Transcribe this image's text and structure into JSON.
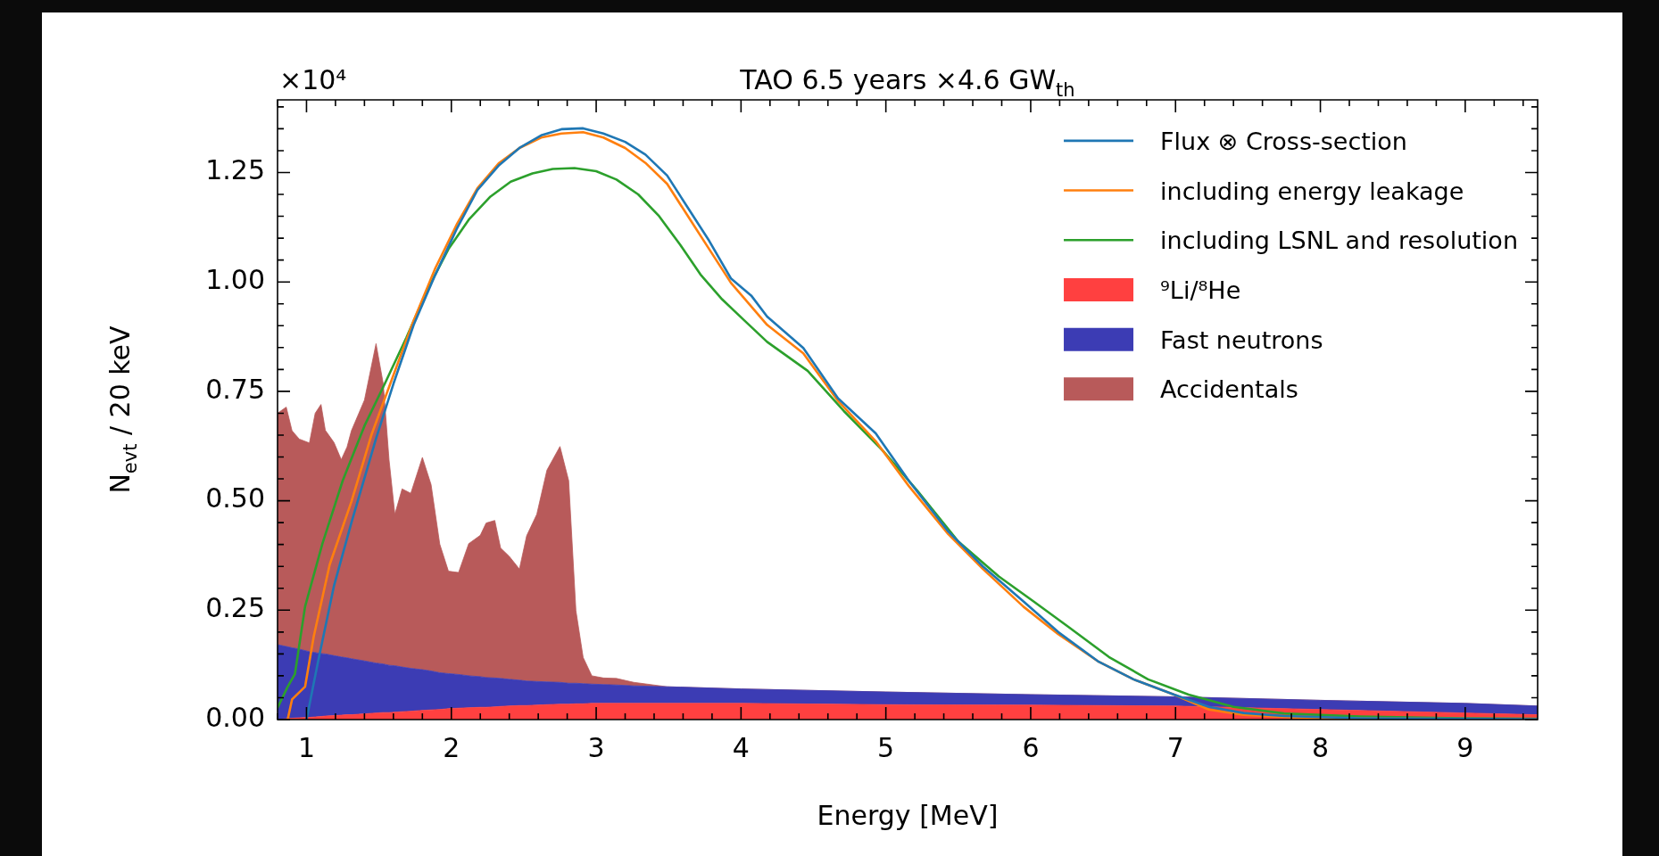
{
  "chart_data": {
    "type": "line",
    "title": "TAO 6.5 years ×4.6 GW$_{th}$",
    "xlabel": "Energy [MeV]",
    "ylabel": "N$_{evt}$ / 20 keV",
    "annotations": [
      "×10⁴"
    ],
    "xlim": [
      0.8,
      9.5
    ],
    "xticks": [
      {
        "value": 0.8,
        "label": null
      },
      1,
      {
        "value": 1.2,
        "label": null
      },
      {
        "value": 1.4,
        "label": null
      },
      {
        "value": 1.6,
        "label": null
      },
      {
        "value": 1.8,
        "label": null
      },
      2,
      {
        "value": 2.2,
        "label": null
      },
      {
        "value": 2.4,
        "label": null
      },
      {
        "value": 2.6,
        "label": null
      },
      {
        "value": 2.8,
        "label": null
      },
      3,
      {
        "value": 3.2,
        "label": null
      },
      {
        "value": 3.4,
        "label": null
      },
      {
        "value": 3.6,
        "label": null
      },
      {
        "value": 3.8,
        "label": null
      },
      4,
      {
        "value": 4.2,
        "label": null
      },
      {
        "value": 4.4,
        "label": null
      },
      {
        "value": 4.6,
        "label": null
      },
      {
        "value": 4.8,
        "label": null
      },
      5,
      {
        "value": 5.2,
        "label": null
      },
      {
        "value": 5.4,
        "label": null
      },
      {
        "value": 5.6,
        "label": null
      },
      {
        "value": 5.8,
        "label": null
      },
      6,
      {
        "value": 6.2,
        "label": null
      },
      {
        "value": 6.4,
        "label": null
      },
      {
        "value": 6.6,
        "label": null
      },
      {
        "value": 6.8,
        "label": null
      },
      7,
      {
        "value": 7.2,
        "label": null
      },
      {
        "value": 7.4,
        "label": null
      },
      {
        "value": 7.6,
        "label": null
      },
      {
        "value": 7.8,
        "label": null
      },
      8,
      {
        "value": 8.2,
        "label": null
      },
      {
        "value": 8.4,
        "label": null
      },
      {
        "value": 8.6,
        "label": null
      },
      {
        "value": 8.8,
        "label": null
      },
      9,
      {
        "value": 9.2,
        "label": null
      },
      {
        "value": 9.4,
        "label": null
      }
    ],
    "ylim": [
      0,
      1.416
    ],
    "yticks": [
      {
        "value": 0,
        "label": "0.00"
      },
      {
        "value": 0.05,
        "label": null
      },
      {
        "value": 0.1,
        "label": null
      },
      {
        "value": 0.15,
        "label": null
      },
      {
        "value": 0.2,
        "label": null
      },
      0.25,
      {
        "value": 0.3,
        "label": null
      },
      {
        "value": 0.35,
        "label": null
      },
      {
        "value": 0.4,
        "label": null
      },
      {
        "value": 0.45,
        "label": null
      },
      {
        "value": 0.5,
        "label": "0.50"
      },
      {
        "value": 0.55,
        "label": null
      },
      {
        "value": 0.6,
        "label": null
      },
      {
        "value": 0.65,
        "label": null
      },
      {
        "value": 0.7,
        "label": null
      },
      0.75,
      {
        "value": 0.8,
        "label": null
      },
      {
        "value": 0.85,
        "label": null
      },
      {
        "value": 0.9,
        "label": null
      },
      {
        "value": 0.95,
        "label": null
      },
      {
        "value": 1,
        "label": "1.00"
      },
      {
        "value": 1.05,
        "label": null
      },
      {
        "value": 1.1,
        "label": null
      },
      {
        "value": 1.15,
        "label": null
      },
      {
        "value": 1.2,
        "label": null
      },
      1.25,
      {
        "value": 1.3,
        "label": null
      },
      {
        "value": 1.35,
        "label": null
      },
      {
        "value": 1.4,
        "label": null
      }
    ],
    "legend": "top right",
    "marker": "none",
    "stacked": true,
    "series": [
      {
        "type": "line",
        "name": "Flux ⊗ Cross-section",
        "color": "#1f77b4",
        "x": [
          1.0,
          1.08,
          1.19,
          1.31,
          1.48,
          1.6,
          1.74,
          1.89,
          2.04,
          2.18,
          2.33,
          2.47,
          2.62,
          2.76,
          2.91,
          3.05,
          3.2,
          3.34,
          3.49,
          3.63,
          3.78,
          3.93,
          4.07,
          4.18,
          4.43,
          4.67,
          4.93,
          5.16,
          5.43,
          5.67,
          5.95,
          6.19,
          6.47,
          6.71,
          6.99,
          7.23,
          7.47,
          7.75,
          8.27,
          9.5
        ],
        "values": [
          0,
          0.133,
          0.306,
          0.45,
          0.642,
          0.767,
          0.902,
          1.017,
          1.123,
          1.21,
          1.267,
          1.306,
          1.335,
          1.349,
          1.351,
          1.339,
          1.32,
          1.291,
          1.243,
          1.171,
          1.094,
          1.008,
          0.969,
          0.921,
          0.849,
          0.734,
          0.654,
          0.545,
          0.43,
          0.35,
          0.27,
          0.2,
          0.132,
          0.092,
          0.057,
          0.029,
          0.015,
          0.008,
          0.003,
          0.001
        ]
      },
      {
        "type": "line",
        "name": "including energy leakage",
        "color": "#ff7f0e",
        "x": [
          0.87,
          0.9,
          0.99,
          1.05,
          1.16,
          1.31,
          1.45,
          1.6,
          1.74,
          1.89,
          2.04,
          2.18,
          2.33,
          2.47,
          2.62,
          2.76,
          2.91,
          3.05,
          3.2,
          3.34,
          3.49,
          3.63,
          3.78,
          3.93,
          4.18,
          4.43,
          4.67,
          4.93,
          5.16,
          5.43,
          5.67,
          5.95,
          6.19,
          6.47,
          6.71,
          6.99,
          7.23,
          7.47,
          7.92,
          9.5
        ],
        "values": [
          0,
          0.046,
          0.075,
          0.19,
          0.354,
          0.498,
          0.652,
          0.787,
          0.912,
          1.032,
          1.133,
          1.214,
          1.272,
          1.306,
          1.33,
          1.339,
          1.342,
          1.33,
          1.306,
          1.272,
          1.224,
          1.152,
          1.075,
          0.998,
          0.902,
          0.837,
          0.728,
          0.636,
          0.533,
          0.424,
          0.344,
          0.258,
          0.195,
          0.132,
          0.092,
          0.057,
          0.023,
          0.011,
          0.003,
          0.001
        ]
      },
      {
        "type": "line",
        "name": "including LSNL and resolution",
        "color": "#2ca02c",
        "x": [
          0.8,
          0.87,
          0.92,
          0.99,
          1.11,
          1.25,
          1.4,
          1.54,
          1.69,
          1.83,
          1.98,
          2.12,
          2.27,
          2.41,
          2.56,
          2.7,
          2.85,
          3.0,
          3.14,
          3.29,
          3.43,
          3.58,
          3.72,
          3.87,
          4.01,
          4.18,
          4.46,
          4.71,
          4.98,
          5.22,
          5.5,
          5.78,
          6.02,
          6.26,
          6.54,
          6.81,
          7.09,
          7.4,
          7.75,
          8.27,
          8.96,
          9.5
        ],
        "values": [
          0.027,
          0.075,
          0.104,
          0.258,
          0.402,
          0.546,
          0.671,
          0.767,
          0.873,
          0.979,
          1.075,
          1.142,
          1.195,
          1.229,
          1.248,
          1.258,
          1.26,
          1.253,
          1.234,
          1.2,
          1.152,
          1.085,
          1.017,
          0.96,
          0.916,
          0.863,
          0.797,
          0.705,
          0.614,
          0.522,
          0.407,
          0.327,
          0.27,
          0.212,
          0.143,
          0.092,
          0.057,
          0.029,
          0.014,
          0.007,
          0.003,
          0.002
        ]
      },
      {
        "type": "area",
        "name": "⁹Li/⁸He",
        "color": "#ff4040",
        "x": [
          0.8,
          0.86,
          0.9,
          0.95,
          1.02,
          1.06,
          1.1,
          1.13,
          1.19,
          1.24,
          1.28,
          1.31,
          1.4,
          1.48,
          1.53,
          1.57,
          1.61,
          1.66,
          1.72,
          1.8,
          1.86,
          1.92,
          1.98,
          2.05,
          2.12,
          2.2,
          2.24,
          2.3,
          2.34,
          2.4,
          2.47,
          2.52,
          2.59,
          2.66,
          2.75,
          2.81,
          2.86,
          2.91,
          2.97,
          3.05,
          3.14,
          3.26,
          3.49,
          4,
          5,
          6,
          7,
          8,
          9,
          9.5
        ],
        "values": [
          0,
          0.002,
          0.003,
          0.004,
          0.005,
          0.006,
          0.007,
          0.008,
          0.009,
          0.01,
          0.011,
          0.011,
          0.013,
          0.015,
          0.016,
          0.016,
          0.017,
          0.018,
          0.019,
          0.021,
          0.022,
          0.023,
          0.025,
          0.026,
          0.027,
          0.028,
          0.028,
          0.029,
          0.03,
          0.031,
          0.032,
          0.032,
          0.033,
          0.034,
          0.035,
          0.035,
          0.036,
          0.036,
          0.037,
          0.037,
          0.037,
          0.037,
          0.037,
          0.037,
          0.034,
          0.033,
          0.031,
          0.023,
          0.015,
          0.011
        ]
      },
      {
        "type": "area",
        "name": "Fast neutrons",
        "color": "#3c3cb4",
        "x": [
          0.8,
          0.86,
          0.9,
          0.95,
          1.02,
          1.06,
          1.1,
          1.13,
          1.19,
          1.24,
          1.28,
          1.31,
          1.4,
          1.48,
          1.53,
          1.57,
          1.61,
          1.66,
          1.72,
          1.8,
          1.86,
          1.92,
          1.98,
          2.05,
          2.12,
          2.2,
          2.24,
          2.3,
          2.34,
          2.4,
          2.47,
          2.52,
          2.59,
          2.66,
          2.75,
          2.81,
          2.86,
          2.91,
          2.97,
          3.05,
          3.14,
          3.26,
          3.49,
          4,
          5,
          6,
          7,
          8,
          9,
          9.5
        ],
        "values": [
          0.171,
          0.165,
          0.161,
          0.157,
          0.15,
          0.147,
          0.144,
          0.142,
          0.137,
          0.133,
          0.13,
          0.128,
          0.121,
          0.114,
          0.111,
          0.108,
          0.106,
          0.102,
          0.098,
          0.093,
          0.089,
          0.084,
          0.08,
          0.077,
          0.073,
          0.07,
          0.068,
          0.066,
          0.064,
          0.061,
          0.058,
          0.056,
          0.054,
          0.052,
          0.05,
          0.048,
          0.047,
          0.046,
          0.044,
          0.043,
          0.042,
          0.04,
          0.038,
          0.033,
          0.029,
          0.024,
          0.021,
          0.021,
          0.022,
          0.02
        ]
      },
      {
        "type": "area",
        "name": "Accidentals",
        "color": "#b85a5a",
        "x": [
          0.8,
          0.86,
          0.9,
          0.95,
          1.02,
          1.06,
          1.1,
          1.13,
          1.19,
          1.24,
          1.28,
          1.31,
          1.4,
          1.48,
          1.53,
          1.57,
          1.61,
          1.66,
          1.72,
          1.8,
          1.86,
          1.92,
          1.98,
          2.05,
          2.12,
          2.2,
          2.24,
          2.3,
          2.34,
          2.4,
          2.47,
          2.52,
          2.59,
          2.66,
          2.75,
          2.81,
          2.86,
          2.91,
          2.97,
          3.05,
          3.14,
          3.26,
          3.49,
          4,
          5,
          6,
          7,
          8,
          9,
          9.5
        ],
        "values": [
          0.529,
          0.547,
          0.496,
          0.48,
          0.477,
          0.547,
          0.569,
          0.511,
          0.487,
          0.451,
          0.482,
          0.521,
          0.596,
          0.73,
          0.64,
          0.469,
          0.346,
          0.407,
          0.4,
          0.485,
          0.426,
          0.294,
          0.234,
          0.233,
          0.302,
          0.323,
          0.353,
          0.36,
          0.298,
          0.281,
          0.254,
          0.332,
          0.382,
          0.484,
          0.539,
          0.463,
          0.166,
          0.06,
          0.019,
          0.015,
          0.015,
          0.008,
          0,
          0,
          0,
          0,
          0,
          0,
          0,
          0
        ]
      }
    ]
  }
}
